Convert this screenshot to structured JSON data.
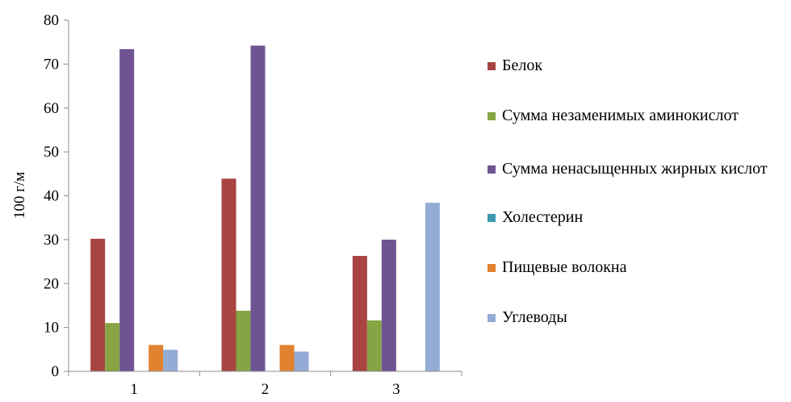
{
  "chart_data": {
    "type": "bar",
    "categories": [
      "1",
      "2",
      "3"
    ],
    "series": [
      {
        "name": "Белок",
        "color": "#A84442",
        "values": [
          30.2,
          43.9,
          26.3
        ]
      },
      {
        "name": "Сумма незаменимых аминокислот",
        "color": "#86A443",
        "values": [
          11.0,
          13.8,
          11.6
        ]
      },
      {
        "name": "Сумма ненасыщенных жирных кислот",
        "color": "#6F5393",
        "values": [
          73.4,
          74.2,
          30.0
        ]
      },
      {
        "name": "Холестерин",
        "color": "#3D98AE",
        "values": [
          0,
          0,
          0
        ]
      },
      {
        "name": "Пищевые волокна",
        "color": "#E0822F",
        "values": [
          6.0,
          6.0,
          0
        ]
      },
      {
        "name": "Углеводы",
        "color": "#93ABD5",
        "values": [
          4.9,
          4.5,
          38.4
        ]
      }
    ],
    "ylabel": "100 г/м",
    "ylim": [
      0,
      80
    ],
    "yticks": [
      "0",
      "10",
      "20",
      "30",
      "40",
      "50",
      "60",
      "70",
      "80"
    ],
    "legend_position": "right",
    "grid": false
  }
}
